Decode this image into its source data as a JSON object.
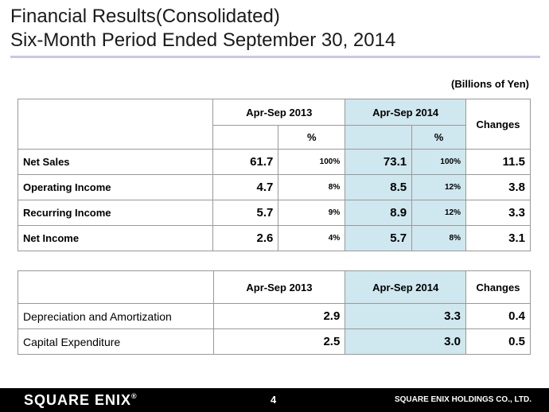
{
  "title_line1": "Financial Results(Consolidated)",
  "title_line2": "Six-Month Period Ended September 30, 2014",
  "units": "(Billions of Yen)",
  "table1": {
    "col_2013": "Apr-Sep 2013",
    "col_2014": "Apr-Sep 2014",
    "col_changes": "Changes",
    "pct_2013": "%",
    "pct_2014": "%",
    "rows": [
      {
        "label": "Net Sales",
        "v2013": "61.7",
        "p2013": "100%",
        "v2014": "73.1",
        "p2014": "100%",
        "change": "11.5"
      },
      {
        "label": "Operating Income",
        "v2013": "4.7",
        "p2013": "8%",
        "v2014": "8.5",
        "p2014": "12%",
        "change": "3.8"
      },
      {
        "label": "Recurring Income",
        "v2013": "5.7",
        "p2013": "9%",
        "v2014": "8.9",
        "p2014": "12%",
        "change": "3.3"
      },
      {
        "label": "Net Income",
        "v2013": "2.6",
        "p2013": "4%",
        "v2014": "5.7",
        "p2014": "8%",
        "change": "3.1"
      }
    ]
  },
  "table2": {
    "col_2013": "Apr-Sep 2013",
    "col_2014": "Apr-Sep 2014",
    "col_changes": "Changes",
    "rows": [
      {
        "label": "Depreciation and Amortization",
        "v2013": "2.9",
        "v2014": "3.3",
        "change": "0.4"
      },
      {
        "label": "Capital Expenditure",
        "v2013": "2.5",
        "v2014": "3.0",
        "change": "0.5"
      }
    ]
  },
  "footer": {
    "logo": "SQUARE ENIX",
    "page_number": "4",
    "company": "SQUARE ENIX HOLDINGS CO., LTD."
  },
  "colors": {
    "highlight": "#cfe7ef",
    "rule": "#c8c8e6",
    "footer_bg": "#000000"
  }
}
